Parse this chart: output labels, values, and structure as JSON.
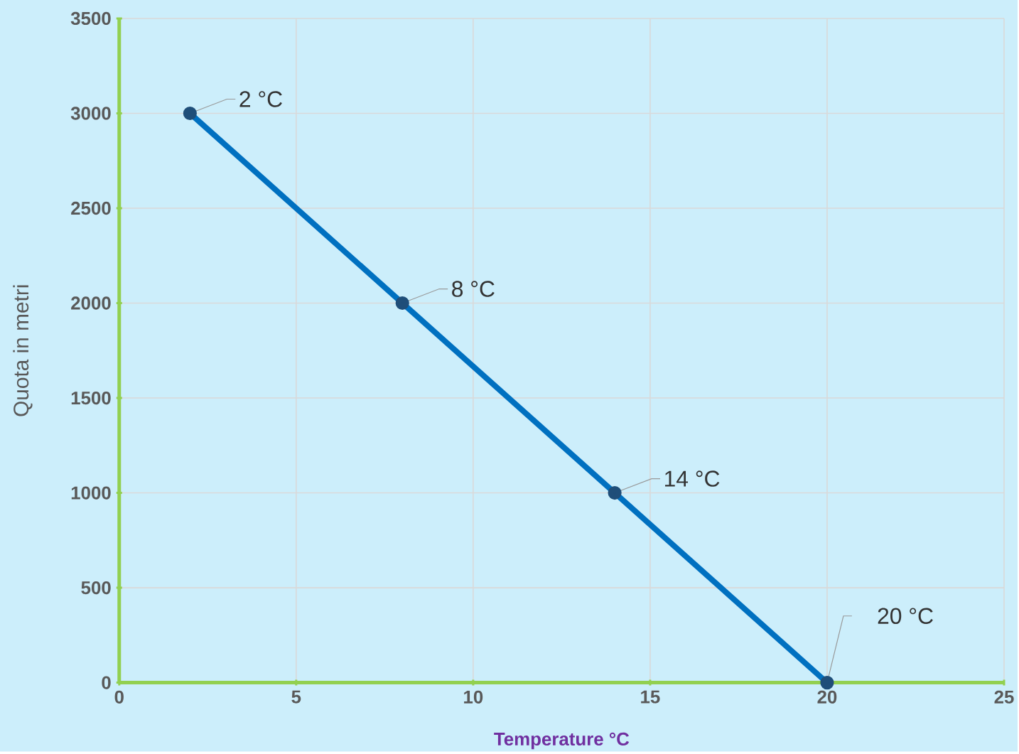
{
  "chart_data": {
    "type": "line",
    "xlabel": "Temperature °C",
    "ylabel": "Quota in metri",
    "x": [
      2,
      8,
      14,
      20
    ],
    "values": [
      3000,
      2000,
      1000,
      0
    ],
    "color": "#0070c0",
    "marker": "circle",
    "line_style": "solid",
    "grid": true,
    "xlim": [
      0,
      25
    ],
    "xticks": [
      0,
      5,
      10,
      15,
      20,
      25
    ],
    "ylim": [
      0,
      3500
    ],
    "yticks": [
      0,
      500,
      1000,
      1500,
      2000,
      2500,
      3000,
      3500
    ],
    "annotations": [
      {
        "text": "2 °C",
        "x": 2,
        "y": 3000
      },
      {
        "text": "8 °C",
        "x": 8,
        "y": 2000
      },
      {
        "text": "14 °C",
        "x": 14,
        "y": 1000
      },
      {
        "text": "20 °C",
        "x": 20,
        "y": 0
      }
    ]
  }
}
